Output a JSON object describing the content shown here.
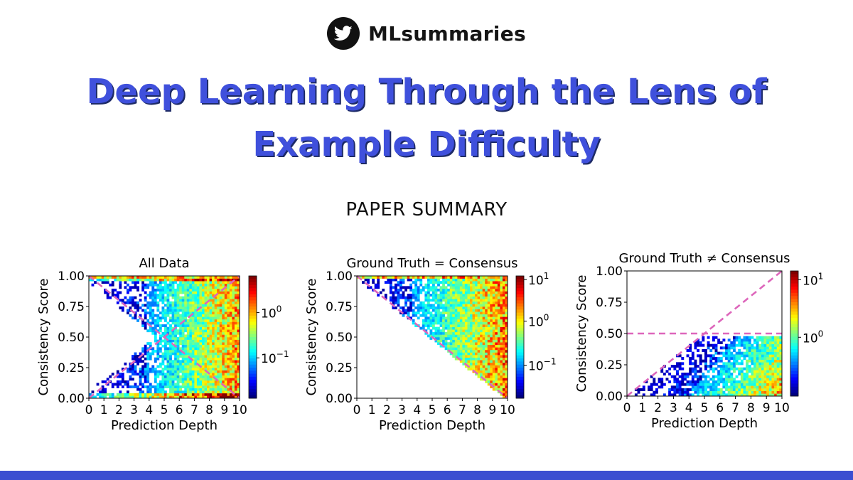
{
  "brand": {
    "name": "MLsummaries",
    "icon": "twitter-bird-icon"
  },
  "title": {
    "line1": "Deep Learning Through the Lens of",
    "line2": "Example Difficulty"
  },
  "subtitle": "PAPER SUMMARY",
  "colors": {
    "title": "#3f50dc",
    "title_shadow": "#1d2a66",
    "footer_bar": "#3c4fd1",
    "dashed_lines": "#dd66bb"
  },
  "chart_data": [
    {
      "type": "heatmap",
      "title": "All Data",
      "xlabel": "Prediction Depth",
      "ylabel": "Consistency Score",
      "xlim": [
        0,
        10
      ],
      "ylim": [
        0,
        1
      ],
      "x_ticks": [
        "0",
        "1",
        "2",
        "3",
        "4",
        "5",
        "6",
        "7",
        "8",
        "9",
        "10"
      ],
      "y_ticks": [
        "0.00",
        "0.25",
        "0.50",
        "0.75",
        "1.00"
      ],
      "colorbar": {
        "scale": "log",
        "ticks": [
          "10^0",
          "10^-1"
        ],
        "colormap": "jet"
      },
      "reference_lines": [
        {
          "style": "dashed",
          "from": [
            0,
            0
          ],
          "to": [
            10,
            1
          ]
        },
        {
          "style": "dashed",
          "from": [
            0,
            1
          ],
          "to": [
            10,
            0
          ]
        }
      ],
      "density_note": "points fill the region away from both diagonals; densest near depth 9–10 and along consistency 1.00"
    },
    {
      "type": "heatmap",
      "title": "Ground Truth = Consensus",
      "xlabel": "Prediction Depth",
      "ylabel": "Consistency Score",
      "xlim": [
        0,
        10
      ],
      "ylim": [
        0,
        1
      ],
      "x_ticks": [
        "0",
        "1",
        "2",
        "3",
        "4",
        "5",
        "6",
        "7",
        "8",
        "9",
        "10"
      ],
      "y_ticks": [
        "0.00",
        "0.25",
        "0.50",
        "0.75",
        "1.00"
      ],
      "colorbar": {
        "scale": "log",
        "ticks": [
          "10^1",
          "10^0",
          "10^-1"
        ],
        "colormap": "jet"
      },
      "reference_lines": [
        {
          "style": "dashed",
          "from": [
            0,
            1
          ],
          "to": [
            10,
            0
          ]
        }
      ],
      "density_note": "points lie above the descending diagonal; densest near depth 9–10 and along consistency 1.00"
    },
    {
      "type": "heatmap",
      "title": "Ground Truth ≠ Consensus",
      "xlabel": "Prediction Depth",
      "ylabel": "Consistency Score",
      "xlim": [
        0,
        10
      ],
      "ylim": [
        0,
        1
      ],
      "x_ticks": [
        "0",
        "1",
        "2",
        "3",
        "4",
        "5",
        "6",
        "7",
        "8",
        "9",
        "10"
      ],
      "y_ticks": [
        "0.00",
        "0.25",
        "0.50",
        "0.75",
        "1.00"
      ],
      "colorbar": {
        "scale": "log",
        "ticks": [
          "10^1",
          "10^0"
        ],
        "colormap": "jet"
      },
      "reference_lines": [
        {
          "style": "dashed",
          "from": [
            0,
            0
          ],
          "to": [
            10,
            1
          ]
        },
        {
          "style": "dashed",
          "from": [
            0,
            0.5
          ],
          "to": [
            10,
            0.5
          ]
        }
      ],
      "density_note": "points lie below consistency 0.50 and below the ascending diagonal; densest near depth 9–10 at low consistency"
    }
  ]
}
